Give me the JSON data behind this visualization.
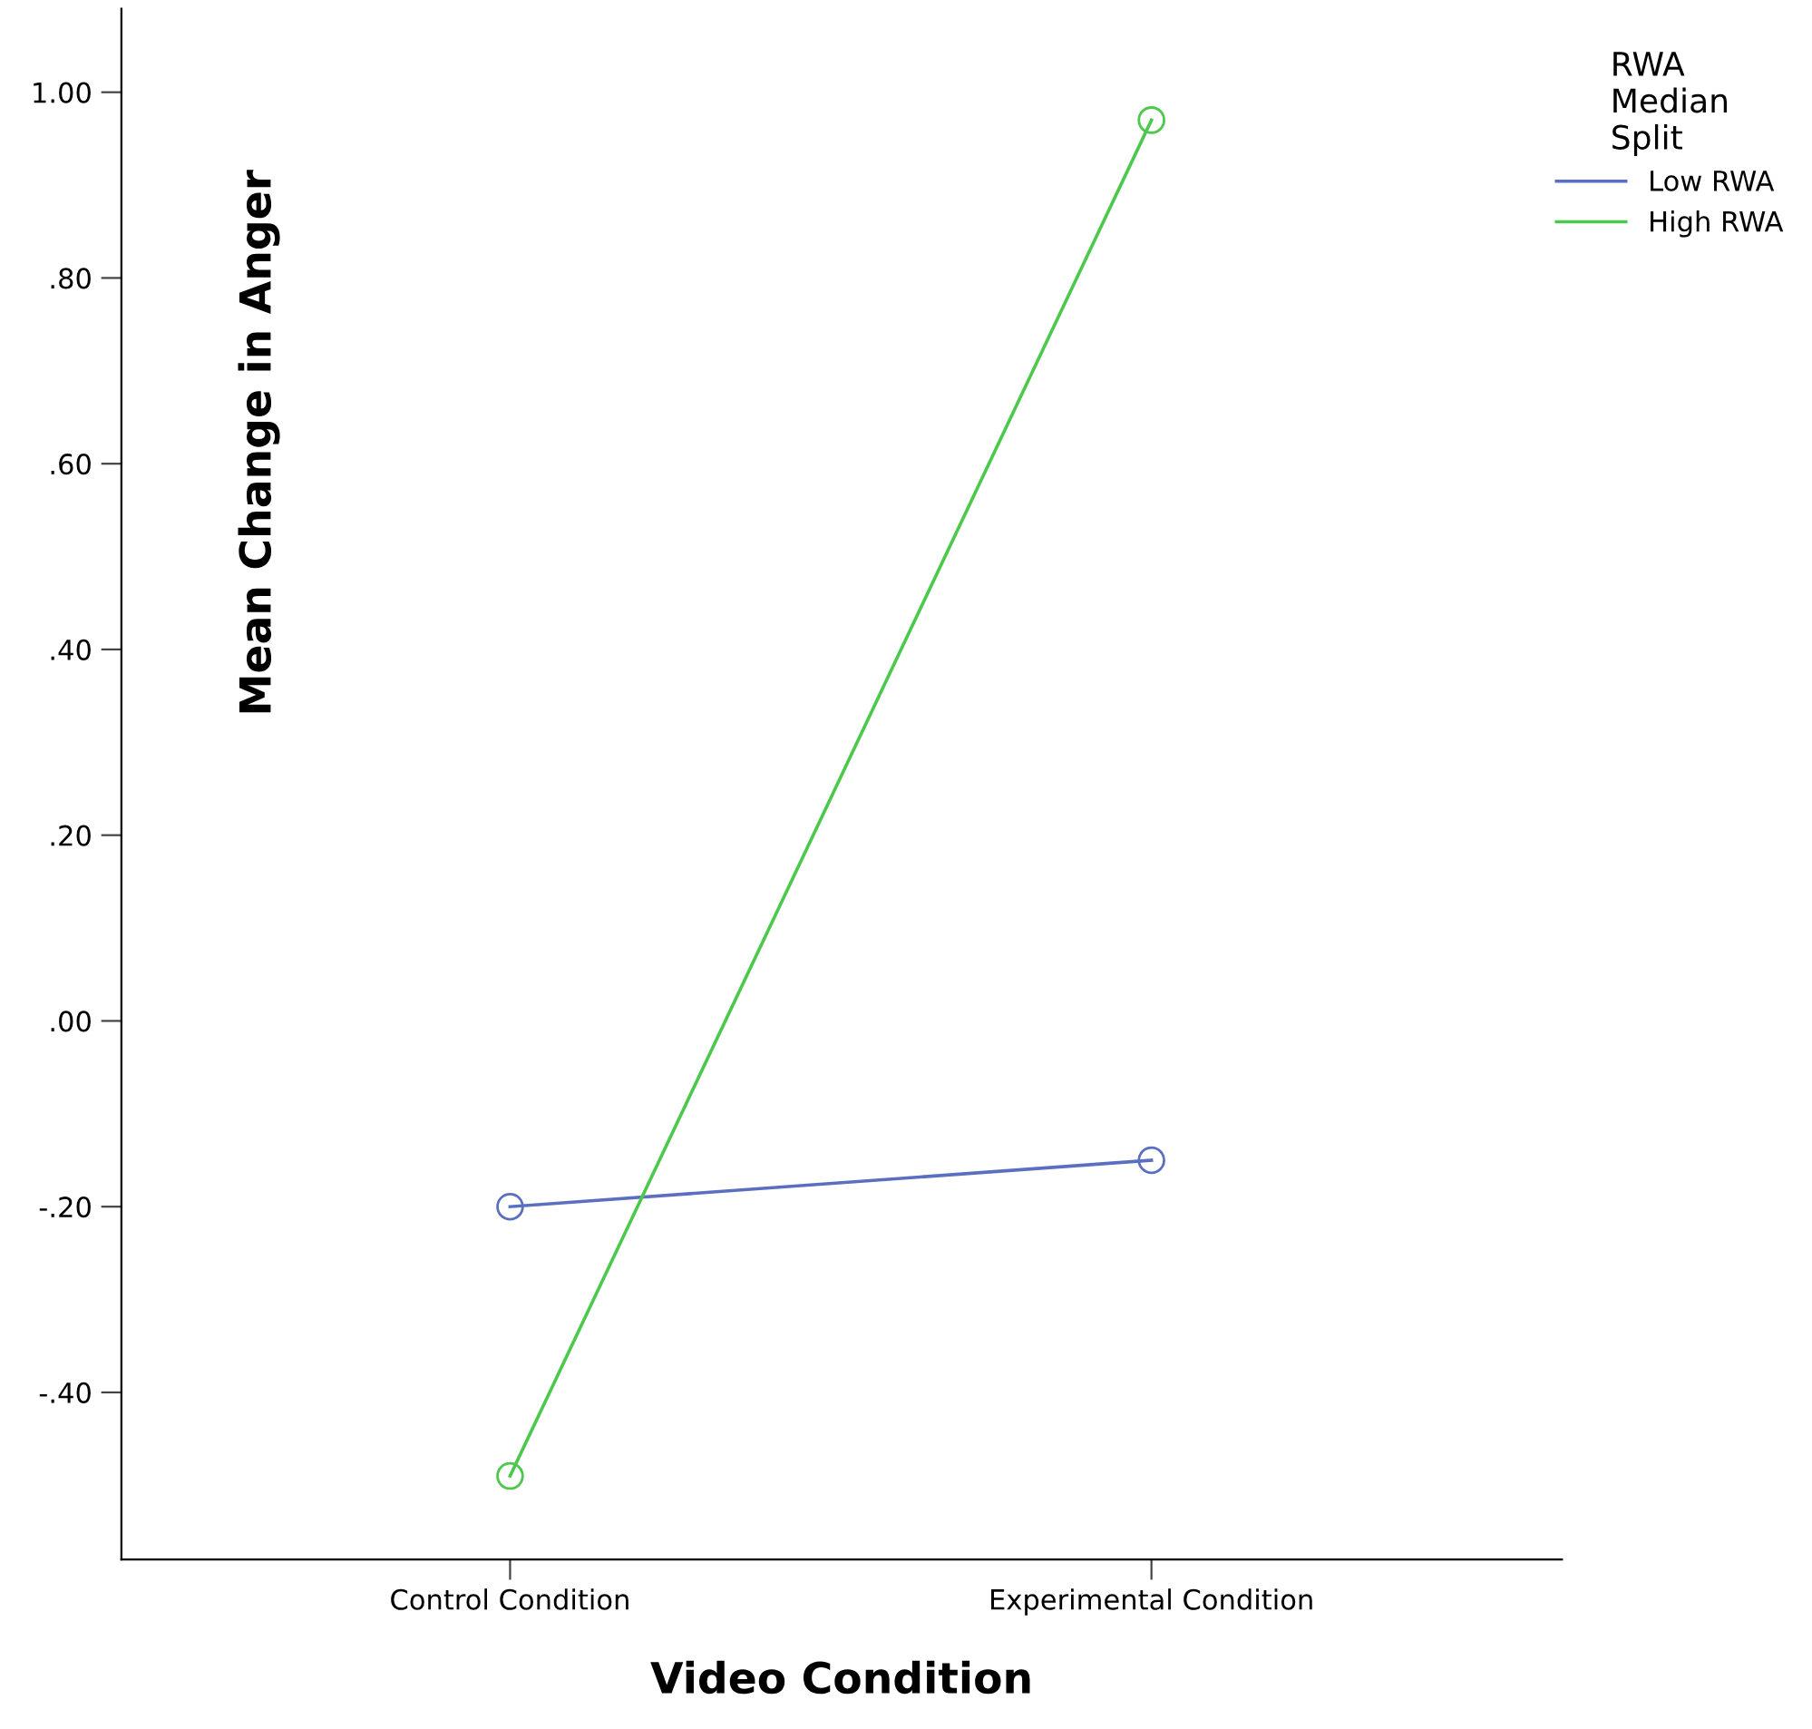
{
  "chart_data": {
    "type": "line",
    "xlabel": "Video Condition",
    "ylabel": "Mean Change in Anger",
    "legend_title": "RWA\nMedian\nSplit",
    "categories": [
      "Control Condition",
      "Experimental Condition"
    ],
    "series": [
      {
        "name": "Low RWA",
        "color": "#5b6fc0",
        "values": [
          -0.2,
          -0.15
        ]
      },
      {
        "name": "High RWA",
        "color": "#4cc84c",
        "values": [
          -0.49,
          0.97
        ]
      }
    ],
    "ylim": [
      -0.58,
      1.09
    ],
    "yticks": [
      {
        "value": -0.4,
        "label": "-.40"
      },
      {
        "value": -0.2,
        "label": "-.20"
      },
      {
        "value": 0,
        "label": ".00"
      },
      {
        "value": 0.2,
        "label": ".20"
      },
      {
        "value": 0.4,
        "label": ".40"
      },
      {
        "value": 0.6,
        "label": ".60"
      },
      {
        "value": 0.8,
        "label": ".80"
      },
      {
        "value": 1.0,
        "label": "1.00"
      }
    ],
    "marker": "circle",
    "line_style": "solid",
    "grid": false,
    "legend": "top right"
  }
}
